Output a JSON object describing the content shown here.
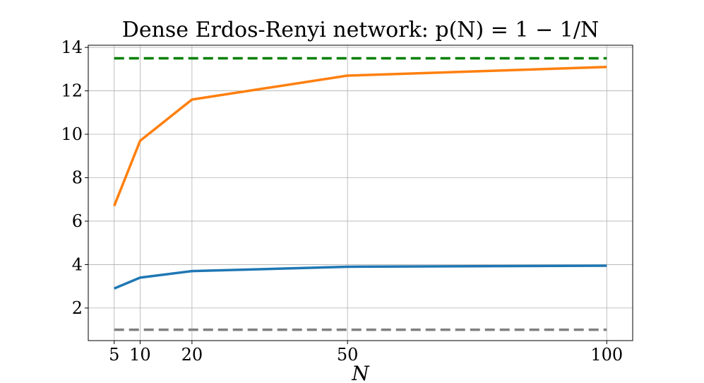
{
  "chart_data": {
    "type": "line",
    "title": "Dense Erdos-Renyi network: p(N) = 1 − 1/N",
    "xlabel": "N",
    "ylabel": "",
    "x": [
      5,
      10,
      20,
      50,
      100
    ],
    "x_ticks": [
      5,
      10,
      20,
      50,
      100
    ],
    "y_ticks": [
      2,
      4,
      6,
      8,
      10,
      12,
      14
    ],
    "xlim": [
      0,
      105
    ],
    "ylim": [
      0.5,
      14.1
    ],
    "grid": true,
    "series": [
      {
        "values": [
          6.7,
          9.7,
          11.6,
          12.7,
          13.1
        ],
        "color": "#ff7f0e",
        "style": "solid"
      },
      {
        "values": [
          2.9,
          3.4,
          3.7,
          3.9,
          3.95
        ],
        "color": "#1f77b4",
        "style": "solid"
      },
      {
        "values": [
          13.5,
          13.5,
          13.5,
          13.5,
          13.5
        ],
        "color": "#008000",
        "style": "dashed"
      },
      {
        "values": [
          1.0,
          1.0,
          1.0,
          1.0,
          1.0
        ],
        "color": "#808080",
        "style": "dashed"
      }
    ]
  }
}
